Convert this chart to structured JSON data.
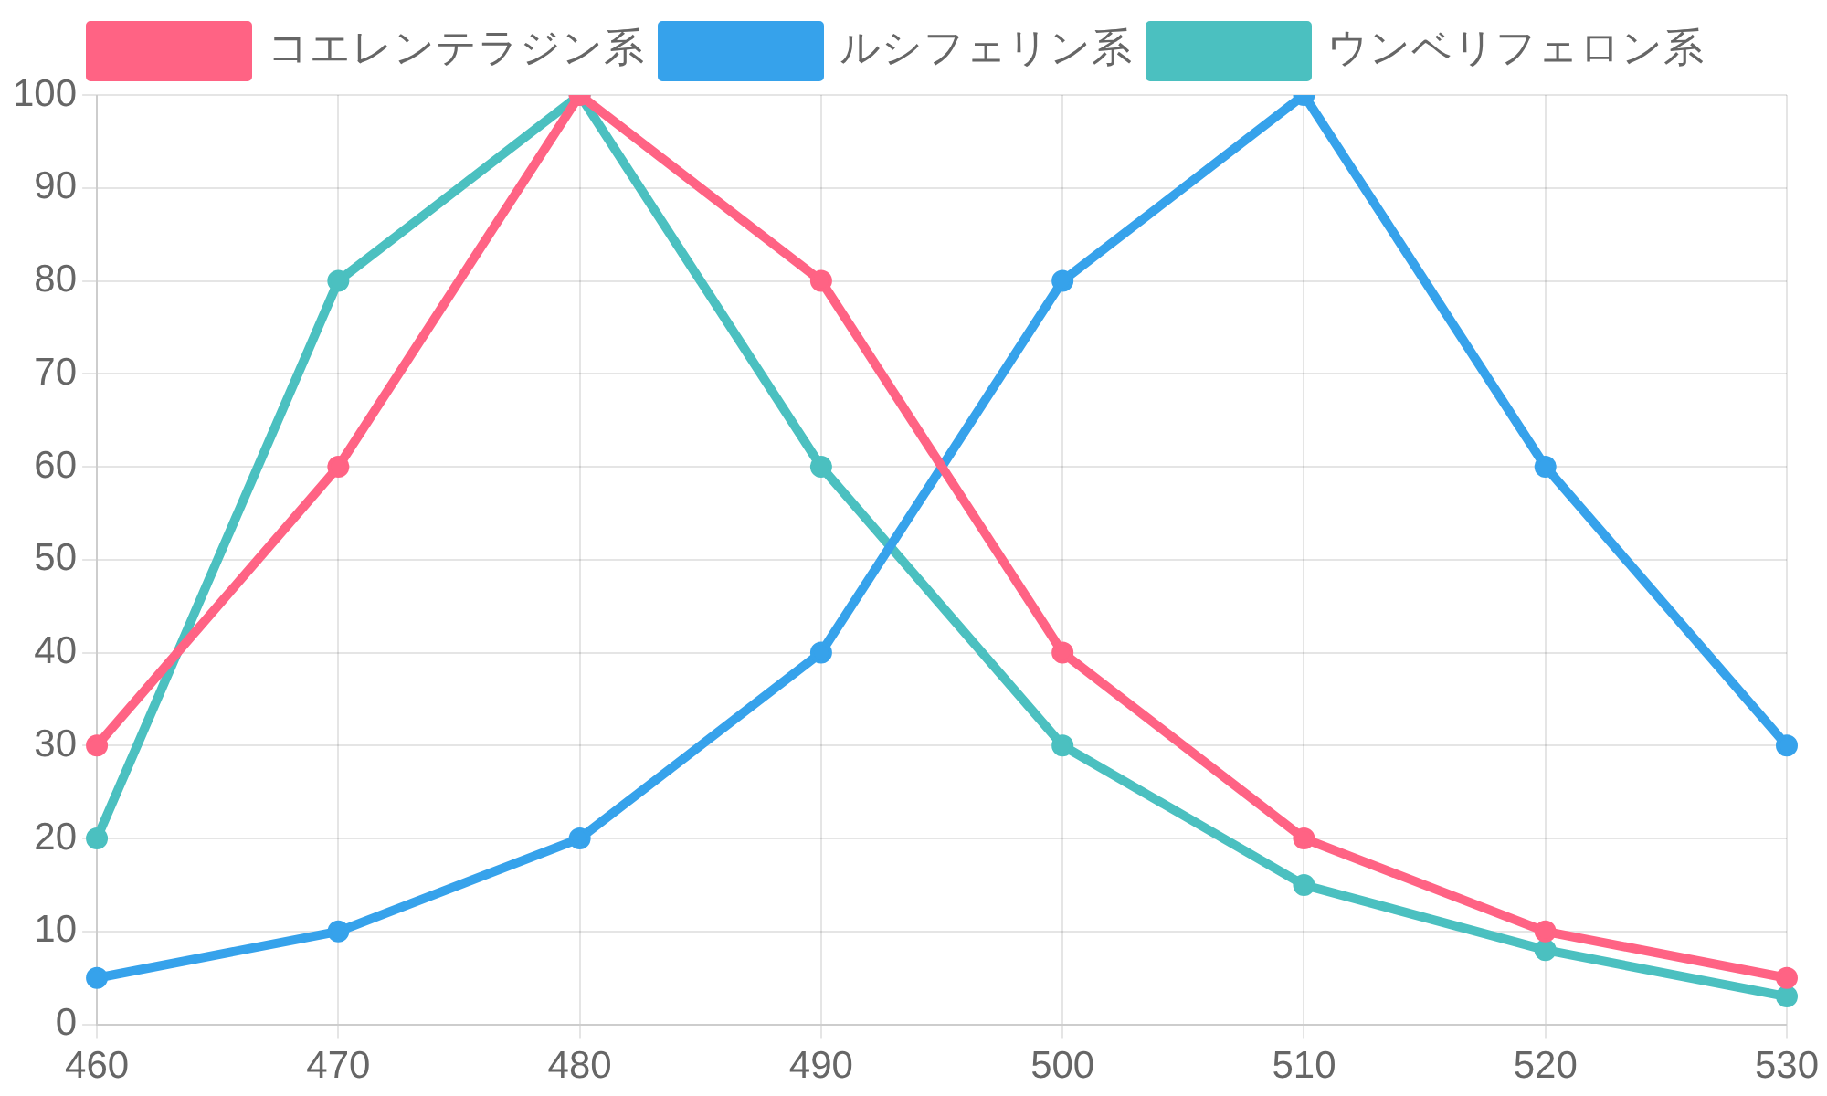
{
  "chart_data": {
    "type": "line",
    "categories": [
      "460",
      "470",
      "480",
      "490",
      "500",
      "510",
      "520",
      "530"
    ],
    "series": [
      {
        "name": "コエレンテラジン系",
        "color": "#ff6384",
        "values": [
          30,
          60,
          100,
          80,
          40,
          20,
          10,
          5
        ]
      },
      {
        "name": "ルシフェリン系",
        "color": "#36a2eb",
        "values": [
          5,
          10,
          20,
          40,
          80,
          100,
          60,
          30
        ]
      },
      {
        "name": "ウンベリフェロン系",
        "color": "#4bc0c0",
        "values": [
          20,
          80,
          100,
          60,
          30,
          15,
          8,
          3
        ]
      }
    ],
    "ylim": [
      0,
      100
    ],
    "yticks": [
      0,
      10,
      20,
      30,
      40,
      50,
      60,
      70,
      80,
      90,
      100
    ],
    "grid": true,
    "legend": "top",
    "marker": "circle",
    "line_style": "solid"
  }
}
